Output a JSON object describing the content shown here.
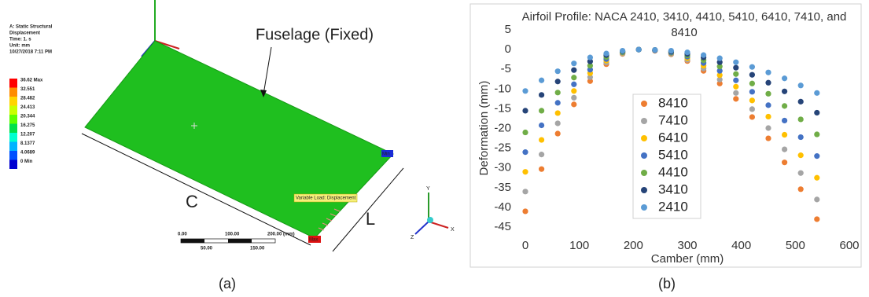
{
  "figure_a": {
    "header": [
      "A: Static Structural",
      "Displacement",
      "Time: 1. s",
      "Unit: mm",
      "10/27/2018 7:11 PM"
    ],
    "legend": [
      "36.62 Max",
      "32.551",
      "28.482",
      "24.413",
      "20.344",
      "16.275",
      "12.207",
      "8.1377",
      "4.0689",
      "0 Min"
    ],
    "labels": {
      "fuselage": "Fuselage (Fixed)",
      "c": "C",
      "l": "L",
      "min": "Min",
      "max": "Max",
      "load": "Variable Load: Displacement"
    },
    "scale": {
      "top": [
        "0.00",
        "100.00",
        "200.00 (mm)"
      ],
      "bottom": [
        "50.00",
        "150.00"
      ]
    },
    "triad": [
      "X",
      "Y",
      "Z"
    ]
  },
  "captions": [
    "(a)",
    "(b)"
  ],
  "chart_data": {
    "type": "scatter",
    "title": "Airfoil Profile: NACA 2410, 3410, 4410, 5410, 6410, 7410, and 8410",
    "x_label": "Camber (mm)",
    "y_label": "Deformation (mm)",
    "x": [
      0,
      30,
      60,
      90,
      120,
      150,
      180,
      210,
      240,
      270,
      300,
      330,
      360,
      390,
      420,
      450,
      480,
      510,
      540
    ],
    "series": [
      {
        "name": "8410",
        "color": "#ed7d31",
        "values": [
          -41,
          -30.3,
          -21.3,
          -13.9,
          -8.0,
          -3.7,
          -1.1,
          0,
          -0.3,
          -1.2,
          -2.9,
          -5.4,
          -8.6,
          -12.5,
          -17.1,
          -22.5,
          -28.6,
          -35.4,
          -43
        ]
      },
      {
        "name": "7410",
        "color": "#a5a5a5",
        "values": [
          -36,
          -26.6,
          -18.7,
          -12.2,
          -7.0,
          -3.3,
          -1.0,
          0,
          -0.2,
          -1.1,
          -2.6,
          -4.8,
          -7.6,
          -11.0,
          -15.1,
          -19.9,
          -25.3,
          -31.3,
          -38
        ]
      },
      {
        "name": "6410",
        "color": "#ffc000",
        "values": [
          -31,
          -22.9,
          -16.1,
          -10.5,
          -6.0,
          -2.8,
          -0.8,
          0,
          -0.2,
          -0.9,
          -2.2,
          -4.1,
          -6.5,
          -9.4,
          -12.9,
          -17.0,
          -21.6,
          -26.8,
          -32.5
        ]
      },
      {
        "name": "5410",
        "color": "#4472c4",
        "values": [
          -26,
          -19.2,
          -13.5,
          -8.8,
          -5.1,
          -2.4,
          -0.7,
          0,
          -0.2,
          -0.8,
          -1.8,
          -3.4,
          -5.4,
          -7.8,
          -10.7,
          -14.1,
          -18.0,
          -22.2,
          -27
        ]
      },
      {
        "name": "4410",
        "color": "#70ad47",
        "values": [
          -21,
          -15.5,
          -10.9,
          -7.1,
          -4.1,
          -1.9,
          -0.6,
          0,
          -0.1,
          -0.6,
          -1.5,
          -2.7,
          -4.3,
          -6.2,
          -8.6,
          -11.2,
          -14.3,
          -17.7,
          -21.5
        ]
      },
      {
        "name": "3410",
        "color": "#264478",
        "values": [
          -15.5,
          -11.5,
          -8.1,
          -5.2,
          -3.0,
          -1.4,
          -0.4,
          0,
          -0.1,
          -0.5,
          -1.1,
          -2.0,
          -3.2,
          -4.6,
          -6.4,
          -8.4,
          -10.6,
          -13.2,
          -16
        ]
      },
      {
        "name": "2410",
        "color": "#5b9bd5",
        "values": [
          -10.5,
          -7.8,
          -5.5,
          -3.5,
          -2.0,
          -1.0,
          -0.3,
          0,
          -0.1,
          -0.3,
          -0.7,
          -1.4,
          -2.2,
          -3.2,
          -4.4,
          -5.8,
          -7.3,
          -9.1,
          -11
        ]
      }
    ],
    "xlim": [
      0,
      600
    ],
    "xticks": [
      0,
      100,
      200,
      300,
      400,
      500,
      600
    ],
    "ylim": [
      -45,
      5
    ],
    "yticks": [
      -45,
      -40,
      -35,
      -30,
      -25,
      -20,
      -15,
      -10,
      -5,
      0,
      5
    ],
    "grid": false,
    "legend": "center"
  }
}
